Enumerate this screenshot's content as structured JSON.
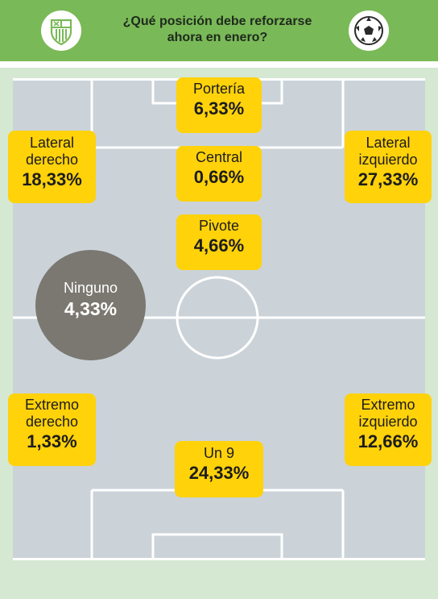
{
  "header": {
    "title_line1": "¿Qué posición debe reforzarse",
    "title_line2": "ahora en enero?",
    "left_icon": "club-crest-icon",
    "right_icon": "soccer-ball-icon"
  },
  "colors": {
    "header_green": "#7ab957",
    "pitch": "#cbd3d9",
    "label_box": "#ffd20a",
    "none_circle": "#7a7870",
    "background": "#d5e8d2"
  },
  "chart_data": {
    "type": "table",
    "unit": "%",
    "categories": [
      "Portería",
      "Lateral derecho",
      "Central",
      "Lateral izquierdo",
      "Pivote",
      "Ninguno",
      "Extremo derecho",
      "Extremo izquierdo",
      "Un 9"
    ],
    "values": [
      6.33,
      18.33,
      0.66,
      27.33,
      4.66,
      4.33,
      1.33,
      12.66,
      24.33
    ],
    "items": {
      "porteria": {
        "label": "Portería",
        "value": "6,33%"
      },
      "lateral_derecho": {
        "label1": "Lateral",
        "label2": "derecho",
        "value": "18,33%"
      },
      "central": {
        "label": "Central",
        "value": "0,66%"
      },
      "lateral_izquierdo": {
        "label1": "Lateral",
        "label2": "izquierdo",
        "value": "27,33%"
      },
      "pivote": {
        "label": "Pivote",
        "value": "4,66%"
      },
      "ninguno": {
        "label": "Ninguno",
        "value": "4,33%"
      },
      "extremo_derecho": {
        "label1": "Extremo",
        "label2": "derecho",
        "value": "1,33%"
      },
      "extremo_izquierdo": {
        "label1": "Extremo",
        "label2": "izquierdo",
        "value": "12,66%"
      },
      "un9": {
        "label": "Un 9",
        "value": "24,33%"
      }
    }
  }
}
